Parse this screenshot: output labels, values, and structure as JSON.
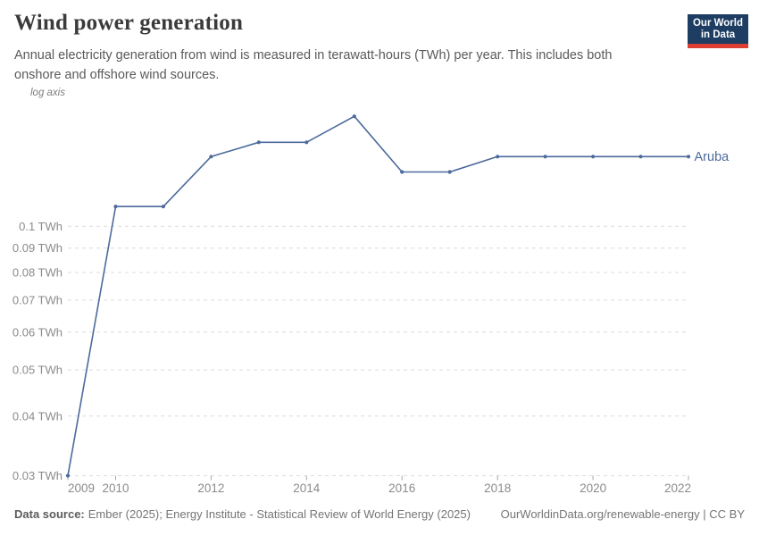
{
  "header": {
    "title": "Wind power generation",
    "subtitle": "Annual electricity generation from wind is measured in terawatt-hours (TWh) per year. This includes both onshore and offshore wind sources.",
    "logo": {
      "line1": "Our World",
      "line2": "in Data"
    }
  },
  "chart_data": {
    "type": "line",
    "title": "Wind power generation",
    "yscale": "log",
    "axis_note": "log axis",
    "xlabel": "",
    "ylabel": "TWh",
    "x": [
      2009,
      2010,
      2011,
      2012,
      2013,
      2014,
      2015,
      2016,
      2017,
      2018,
      2019,
      2020,
      2021,
      2022
    ],
    "series": [
      {
        "name": "Aruba",
        "color": "#4c6a9c",
        "values": [
          0.03,
          0.11,
          0.11,
          0.14,
          0.15,
          0.15,
          0.17,
          0.13,
          0.13,
          0.14,
          0.14,
          0.14,
          0.14,
          0.14
        ]
      }
    ],
    "ylim": [
      0.03,
      0.18
    ],
    "yticks": [
      {
        "value": 0.1,
        "label": "0.1 TWh"
      },
      {
        "value": 0.09,
        "label": "0.09 TWh"
      },
      {
        "value": 0.08,
        "label": "0.08 TWh"
      },
      {
        "value": 0.07,
        "label": "0.07 TWh"
      },
      {
        "value": 0.06,
        "label": "0.06 TWh"
      },
      {
        "value": 0.05,
        "label": "0.05 TWh"
      },
      {
        "value": 0.04,
        "label": "0.04 TWh"
      },
      {
        "value": 0.03,
        "label": "0.03 TWh"
      }
    ],
    "xticks": [
      2009,
      2010,
      2012,
      2014,
      2016,
      2018,
      2020,
      2022
    ],
    "grid": true,
    "grid_style": "dashed",
    "legend": "end-of-line-label"
  },
  "footer": {
    "datasource_label": "Data source:",
    "datasource_text": "Ember (2025); Energy Institute - Statistical Review of World Energy (2025)",
    "link_text": "OurWorldinData.org/renewable-energy | CC BY"
  },
  "colors": {
    "line": "#4c6a9c",
    "grid": "#dcdcdc",
    "tick": "#a8a8a8",
    "axis_label": "#8b8b8b",
    "title": "#3b3b3b",
    "subtitle": "#5a5a5a",
    "footer": "#757575",
    "logo_bg": "#1d3d63",
    "logo_accent": "#dc3e32"
  }
}
